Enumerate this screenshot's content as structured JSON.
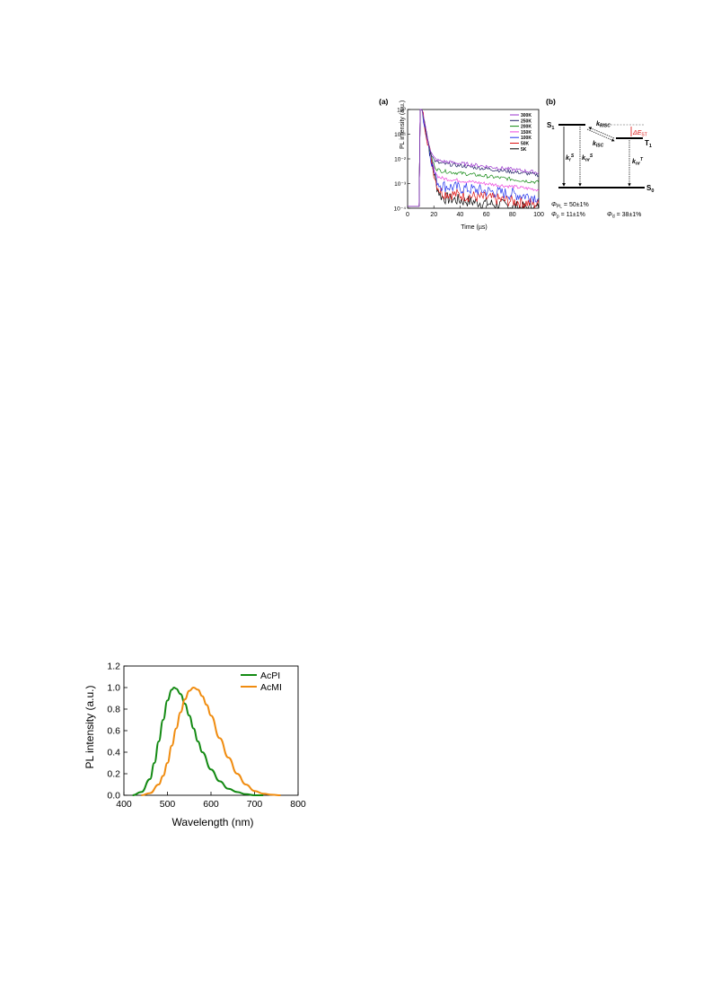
{
  "panel_a": {
    "label": "(a)",
    "chart_data": {
      "type": "line",
      "xlabel": "Time (µs)",
      "ylabel": "PL intensity (a.u.)",
      "xlim": [
        0,
        100
      ],
      "ylim": [
        0.0001,
        1
      ],
      "y_scale": "log",
      "x_ticks": [
        "0",
        "20",
        "40",
        "60",
        "80",
        "100"
      ],
      "y_ticks": [
        "10⁰",
        "10⁻¹",
        "10⁻²",
        "10⁻³",
        "10⁻⁴"
      ],
      "legend_position": "top-right",
      "series": [
        {
          "name": "300K",
          "color": "#9933cc",
          "tail": 0.0025
        },
        {
          "name": "250K",
          "color": "#222266",
          "tail": 0.002
        },
        {
          "name": "200K",
          "color": "#118811",
          "tail": 0.001
        },
        {
          "name": "150K",
          "color": "#ee44dd",
          "tail": 0.0005
        },
        {
          "name": "100K",
          "color": "#2233ee",
          "tail": 0.00025
        },
        {
          "name": "50K",
          "color": "#dd1111",
          "tail": 0.00013
        },
        {
          "name": "5K",
          "color": "#000000",
          "tail": 8e-05
        }
      ]
    }
  },
  "panel_b": {
    "label": "(b)",
    "s1": "S",
    "s1_sub": "1",
    "t1": "T",
    "t1_sub": "1",
    "s0": "S",
    "s0_sub": "0",
    "k_risc": "k",
    "k_risc_sub": "RISC",
    "k_isc": "k",
    "k_isc_sub": "ISC",
    "delta_est": "ΔE",
    "delta_est_sub": "ST",
    "kr_s": "k",
    "kr_s_sub": "r",
    "kr_s_sup": "S",
    "knr_s": "k",
    "knr_s_sub": "nr",
    "knr_s_sup": "S",
    "knr_t": "k",
    "knr_t_sub": "nr",
    "knr_t_sup": "T",
    "phi_pl_sym": "Φ",
    "phi_pl_sub": "PL",
    "phi_pl_val": " = 50±1%",
    "phi_p_sym": "Φ",
    "phi_p_sub": "p",
    "phi_p_val": " = 11±1%",
    "phi_d_sym": "Φ",
    "phi_d_sub": "d",
    "phi_d_val": " = 38±1%",
    "accent": "#dd1111"
  },
  "panel_c": {
    "chart_data": {
      "type": "line",
      "xlabel": "Wavelength (nm)",
      "ylabel": "PL intensity (a.u.)",
      "xlim": [
        400,
        800
      ],
      "ylim": [
        0,
        1.2
      ],
      "x_ticks": [
        400,
        500,
        600,
        700,
        800
      ],
      "y_ticks": [
        "0.0",
        "0.2",
        "0.4",
        "0.6",
        "0.8",
        "1.0",
        "1.2"
      ],
      "legend_position": "top-right",
      "series": [
        {
          "name": "AcPI",
          "color": "#138a13",
          "x": [
            420,
            440,
            460,
            470,
            480,
            490,
            500,
            510,
            515,
            520,
            530,
            540,
            550,
            560,
            570,
            580,
            600,
            620,
            640,
            660,
            680,
            700,
            720
          ],
          "y": [
            0.0,
            0.03,
            0.15,
            0.3,
            0.5,
            0.7,
            0.88,
            0.98,
            1.0,
            0.99,
            0.94,
            0.85,
            0.74,
            0.62,
            0.5,
            0.4,
            0.24,
            0.13,
            0.06,
            0.03,
            0.01,
            0.0,
            0.0
          ]
        },
        {
          "name": "AcMI",
          "color": "#f08c10",
          "x": [
            440,
            460,
            480,
            490,
            500,
            510,
            520,
            530,
            540,
            550,
            560,
            570,
            580,
            590,
            600,
            620,
            640,
            660,
            680,
            700,
            720,
            740,
            760
          ],
          "y": [
            0.0,
            0.02,
            0.1,
            0.18,
            0.3,
            0.46,
            0.62,
            0.77,
            0.89,
            0.97,
            1.0,
            0.98,
            0.92,
            0.84,
            0.74,
            0.53,
            0.35,
            0.2,
            0.1,
            0.04,
            0.015,
            0.005,
            0.0
          ]
        }
      ]
    }
  }
}
